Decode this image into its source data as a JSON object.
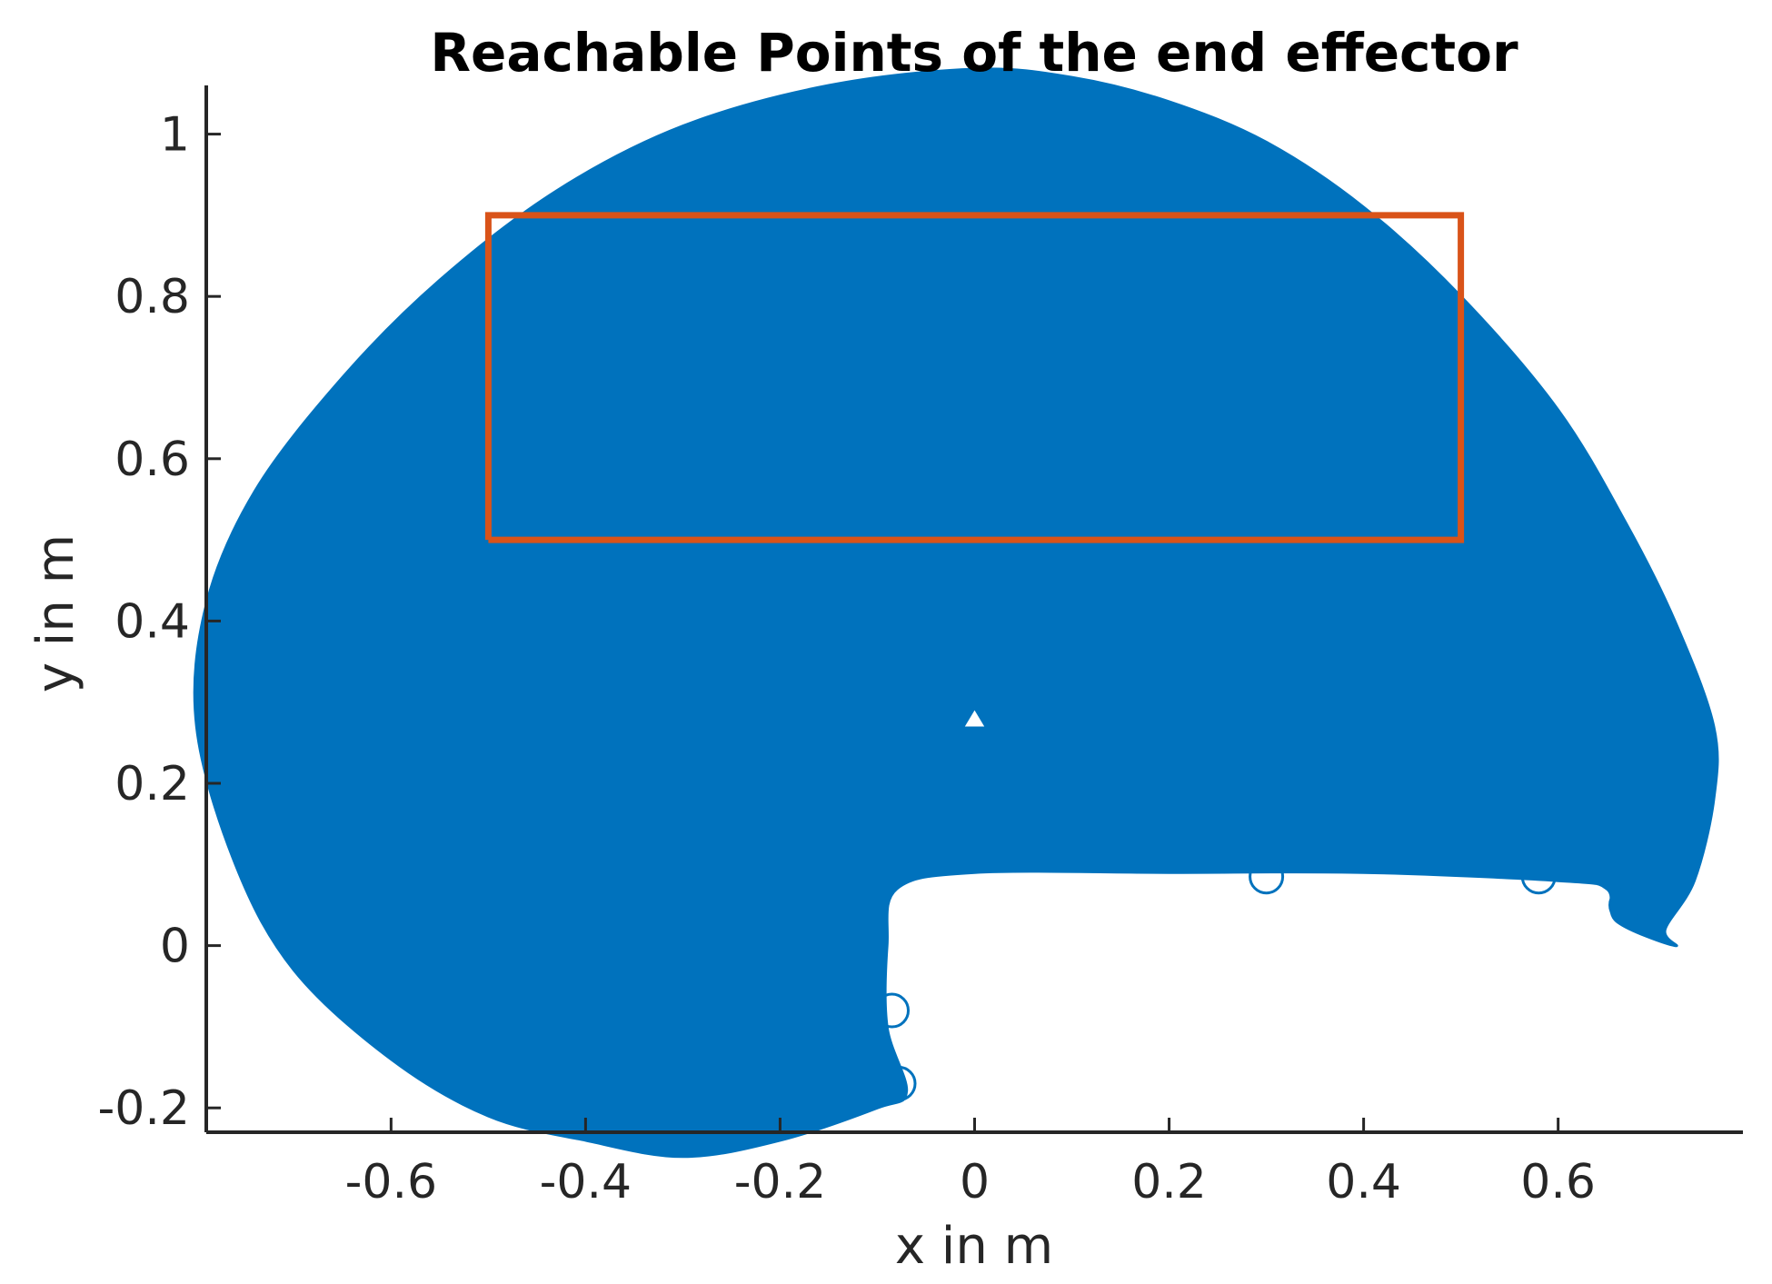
{
  "chart_data": {
    "type": "scatter",
    "title": "Reachable Points of the end effector",
    "xlabel": "x in m",
    "ylabel": "y in m",
    "xlim": [
      -0.79,
      0.79
    ],
    "ylim": [
      -0.23,
      1.06
    ],
    "x_ticks": [
      -0.6,
      -0.4,
      -0.2,
      0,
      0.2,
      0.4,
      0.6
    ],
    "x_tick_labels": [
      "-0.6",
      "-0.4",
      "-0.2",
      "0",
      "0.2",
      "0.4",
      "0.6"
    ],
    "y_ticks": [
      -0.2,
      0,
      0.2,
      0.4,
      0.6,
      0.8,
      1
    ],
    "y_tick_labels": [
      "-0.2",
      "0",
      "0.2",
      "0.4",
      "0.6",
      "0.8",
      "1"
    ],
    "grid": false,
    "legend": "none",
    "series": [
      {
        "kind": "reachable-region",
        "color": "#0072BD",
        "marker": "circle",
        "outline": [
          [
            0.0,
            1.08
          ],
          [
            0.1,
            1.07
          ],
          [
            0.2,
            1.04
          ],
          [
            0.3,
            0.99
          ],
          [
            0.4,
            0.91
          ],
          [
            0.5,
            0.8
          ],
          [
            0.6,
            0.66
          ],
          [
            0.67,
            0.52
          ],
          [
            0.72,
            0.4
          ],
          [
            0.76,
            0.27
          ],
          [
            0.76,
            0.18
          ],
          [
            0.74,
            0.08
          ],
          [
            0.71,
            0.02
          ],
          [
            0.72,
            0.0
          ],
          [
            0.66,
            0.03
          ],
          [
            0.65,
            0.07
          ],
          [
            0.6,
            0.08
          ],
          [
            0.4,
            0.09
          ],
          [
            0.2,
            0.09
          ],
          [
            0.0,
            0.09
          ],
          [
            -0.08,
            0.07
          ],
          [
            -0.09,
            0.0
          ],
          [
            -0.09,
            -0.1
          ],
          [
            -0.07,
            -0.18
          ],
          [
            -0.1,
            -0.2
          ],
          [
            -0.2,
            -0.24
          ],
          [
            -0.3,
            -0.26
          ],
          [
            -0.4,
            -0.24
          ],
          [
            -0.5,
            -0.21
          ],
          [
            -0.6,
            -0.14
          ],
          [
            -0.7,
            -0.03
          ],
          [
            -0.76,
            0.1
          ],
          [
            -0.8,
            0.27
          ],
          [
            -0.79,
            0.42
          ],
          [
            -0.74,
            0.56
          ],
          [
            -0.65,
            0.7
          ],
          [
            -0.55,
            0.82
          ],
          [
            -0.43,
            0.93
          ],
          [
            -0.3,
            1.01
          ],
          [
            -0.15,
            1.06
          ],
          [
            0.0,
            1.08
          ]
        ],
        "hole": [
          [
            0.0,
            0.29
          ],
          [
            0.01,
            0.27
          ],
          [
            -0.01,
            0.27
          ]
        ]
      },
      {
        "kind": "workspace-rectangle",
        "color": "#D95319",
        "x": [
          -0.5,
          0.5,
          0.5,
          -0.5,
          -0.5
        ],
        "y": [
          0.5,
          0.5,
          0.9,
          0.9,
          0.5
        ]
      }
    ]
  }
}
